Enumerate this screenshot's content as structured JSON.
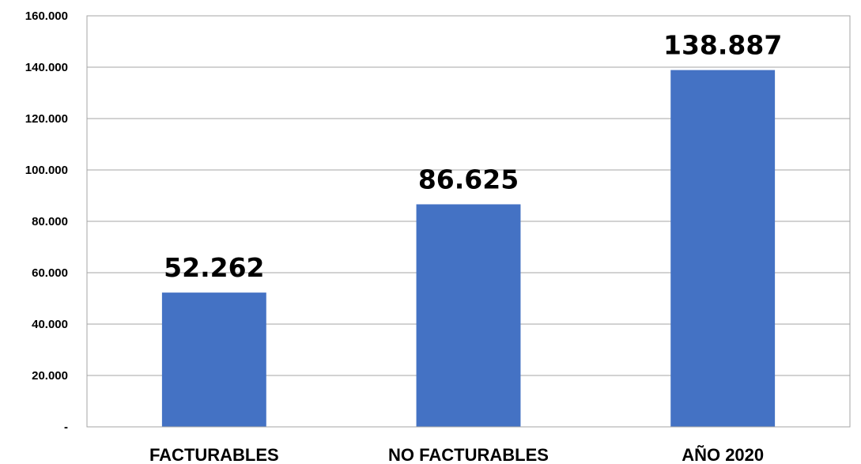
{
  "chart_data": {
    "type": "bar",
    "title": "",
    "xlabel": "",
    "ylabel": "",
    "categories": [
      "FACTURABLES",
      "NO FACTURABLES",
      "AÑO 2020"
    ],
    "values": [
      52262,
      86625,
      138887
    ],
    "data_labels": [
      "52.262",
      "86.625",
      "138.887"
    ],
    "ylim": [
      0,
      160000
    ],
    "yticks": [
      0,
      20000,
      40000,
      60000,
      80000,
      100000,
      120000,
      140000,
      160000
    ],
    "ytick_labels": [
      "-",
      "20.000",
      "40.000",
      "60.000",
      "80.000",
      "100.000",
      "120.000",
      "140.000",
      "160.000"
    ],
    "grid": true,
    "legend": "none",
    "bar_color": "#4472C4",
    "grid_color": "#A6A6A6",
    "axis_color": "#A6A6A6"
  }
}
